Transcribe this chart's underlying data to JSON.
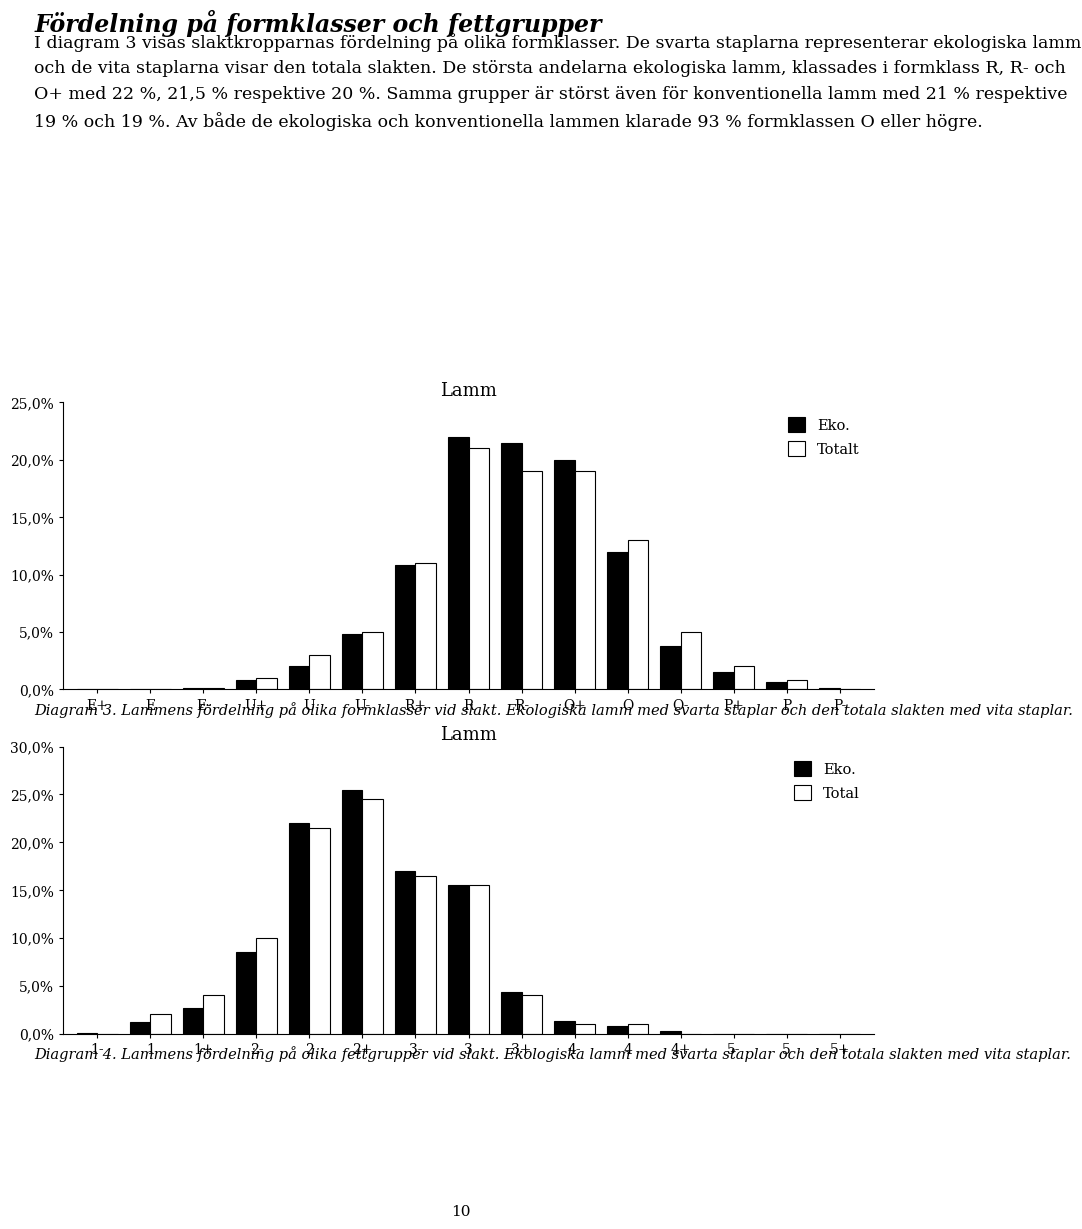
{
  "title_text": "Fördelning på formklasser och fettgrupper",
  "intro_text": "I diagram 3 visas slaktkropparnas fördelning på olika formklasser. De svarta staplarna representerar ekologiska lamm och de vita staplarna visar den totala slakten. De största andelarna ekologiska lamm, klassades i formklass R, R- och O+ med 22 %, 21,5 % respektive 20 %. Samma grupper är störst även för konventionella lamm med 21 % respektive 19 % och 19 %. Av både de ekologiska och konventionella lammen klarade 93 % formklassen O eller högre.",
  "chart1_title": "Lamm",
  "chart1_categories": [
    "E+",
    "E",
    "E-",
    "U+",
    "U",
    "U-",
    "R+",
    "R",
    "R-",
    "O+",
    "O",
    "O-",
    "P+",
    "P",
    "P-"
  ],
  "chart1_eko": [
    0.0,
    0.0,
    0.1,
    0.8,
    2.0,
    4.8,
    10.8,
    22.0,
    21.5,
    20.0,
    12.0,
    3.8,
    1.5,
    0.6,
    0.1
  ],
  "chart1_totalt": [
    0.0,
    0.05,
    0.1,
    1.0,
    3.0,
    5.0,
    11.0,
    21.0,
    19.0,
    19.0,
    13.0,
    5.0,
    2.0,
    0.8,
    0.05
  ],
  "chart1_ylim": [
    0.0,
    25.0
  ],
  "chart1_yticks": [
    0.0,
    5.0,
    10.0,
    15.0,
    20.0,
    25.0
  ],
  "chart1_ytick_labels": [
    "0,0%",
    "5,0%",
    "10,0%",
    "15,0%",
    "20,0%",
    "25,0%"
  ],
  "chart1_legend_eko": "Eko.",
  "chart1_legend_totalt": "Totalt",
  "chart1_caption": "Diagram 3. Lammens fördelning på olika formklasser vid slakt. Ekologiska lamm med svarta staplar och den totala slakten med vita staplar.",
  "chart2_title": "Lamm",
  "chart2_categories": [
    "1-",
    "1",
    "1+",
    "2-",
    "2",
    "2+",
    "3-",
    "3",
    "3+",
    "4-",
    "4",
    "4+",
    "5-",
    "5",
    "5+"
  ],
  "chart2_eko": [
    0.1,
    1.2,
    2.7,
    8.5,
    22.0,
    25.5,
    17.0,
    15.5,
    4.3,
    1.3,
    0.8,
    0.3,
    0.0,
    0.0,
    0.0
  ],
  "chart2_total": [
    0.0,
    2.0,
    4.0,
    10.0,
    21.5,
    24.5,
    16.5,
    15.5,
    4.0,
    1.0,
    1.0,
    0.0,
    0.0,
    0.0,
    0.0
  ],
  "chart2_ylim": [
    0.0,
    30.0
  ],
  "chart2_yticks": [
    0.0,
    5.0,
    10.0,
    15.0,
    20.0,
    25.0,
    30.0
  ],
  "chart2_ytick_labels": [
    "0,0%",
    "5,0%",
    "10,0%",
    "15,0%",
    "20,0%",
    "25,0%",
    "30,0%"
  ],
  "chart2_legend_eko": "Eko.",
  "chart2_legend_total": "Total",
  "chart2_caption": "Diagram 4. Lammens fördelning på olika fettgrupper vid slakt. Ekologiska lamm med svarta staplar och den totala slakten med vita staplar.",
  "page_number": "10",
  "bar_color_eko": "#000000",
  "bar_color_total": "#ffffff",
  "bar_edgecolor": "#000000",
  "background_color": "#ffffff",
  "text_color": "#000000",
  "title_fontsize": 17,
  "body_fontsize": 12.5,
  "chart_title_fontsize": 13,
  "axis_fontsize": 10,
  "caption_fontsize": 10.5,
  "legend_fontsize": 10.5
}
